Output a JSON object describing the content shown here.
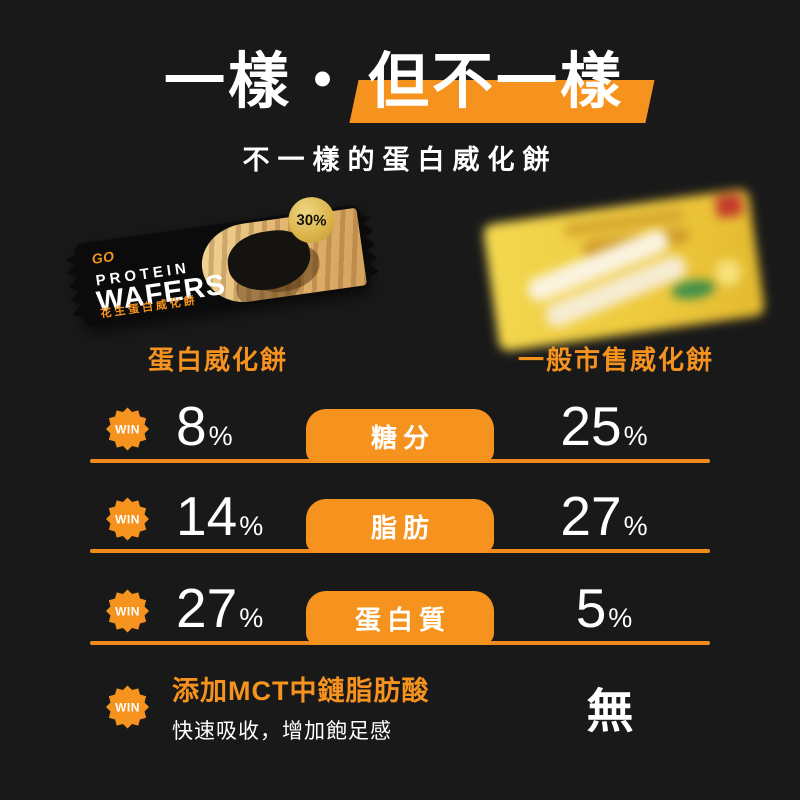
{
  "colors": {
    "background": "#191919",
    "accent_orange": "#f6921e",
    "text_white": "#ffffff",
    "gold_badge": "#d9b349",
    "rival_yellow": "#eec93c"
  },
  "header": {
    "title_plain": "一樣・",
    "title_highlight": "但不一樣",
    "subtitle": "不一樣的蛋白威化餅"
  },
  "products": {
    "left": {
      "label": "蛋白威化餅",
      "package": {
        "brand": "GO",
        "line1": "PROTEIN",
        "line2": "WAFERS",
        "line3": "花生蛋白威化餅",
        "badge": "30%"
      }
    },
    "right": {
      "label": "一般市售威化餅"
    }
  },
  "comparison": {
    "win_label": "WIN",
    "unit": "%",
    "rows": [
      {
        "metric": "糖分",
        "left_value": "8",
        "right_value": "25"
      },
      {
        "metric": "脂肪",
        "left_value": "14",
        "right_value": "27"
      },
      {
        "metric": "蛋白質",
        "left_value": "27",
        "right_value": "5"
      },
      {
        "feature_title": "添加MCT中鏈脂肪酸",
        "feature_desc": "快速吸收，增加飽足感",
        "right_value": "無"
      }
    ]
  }
}
